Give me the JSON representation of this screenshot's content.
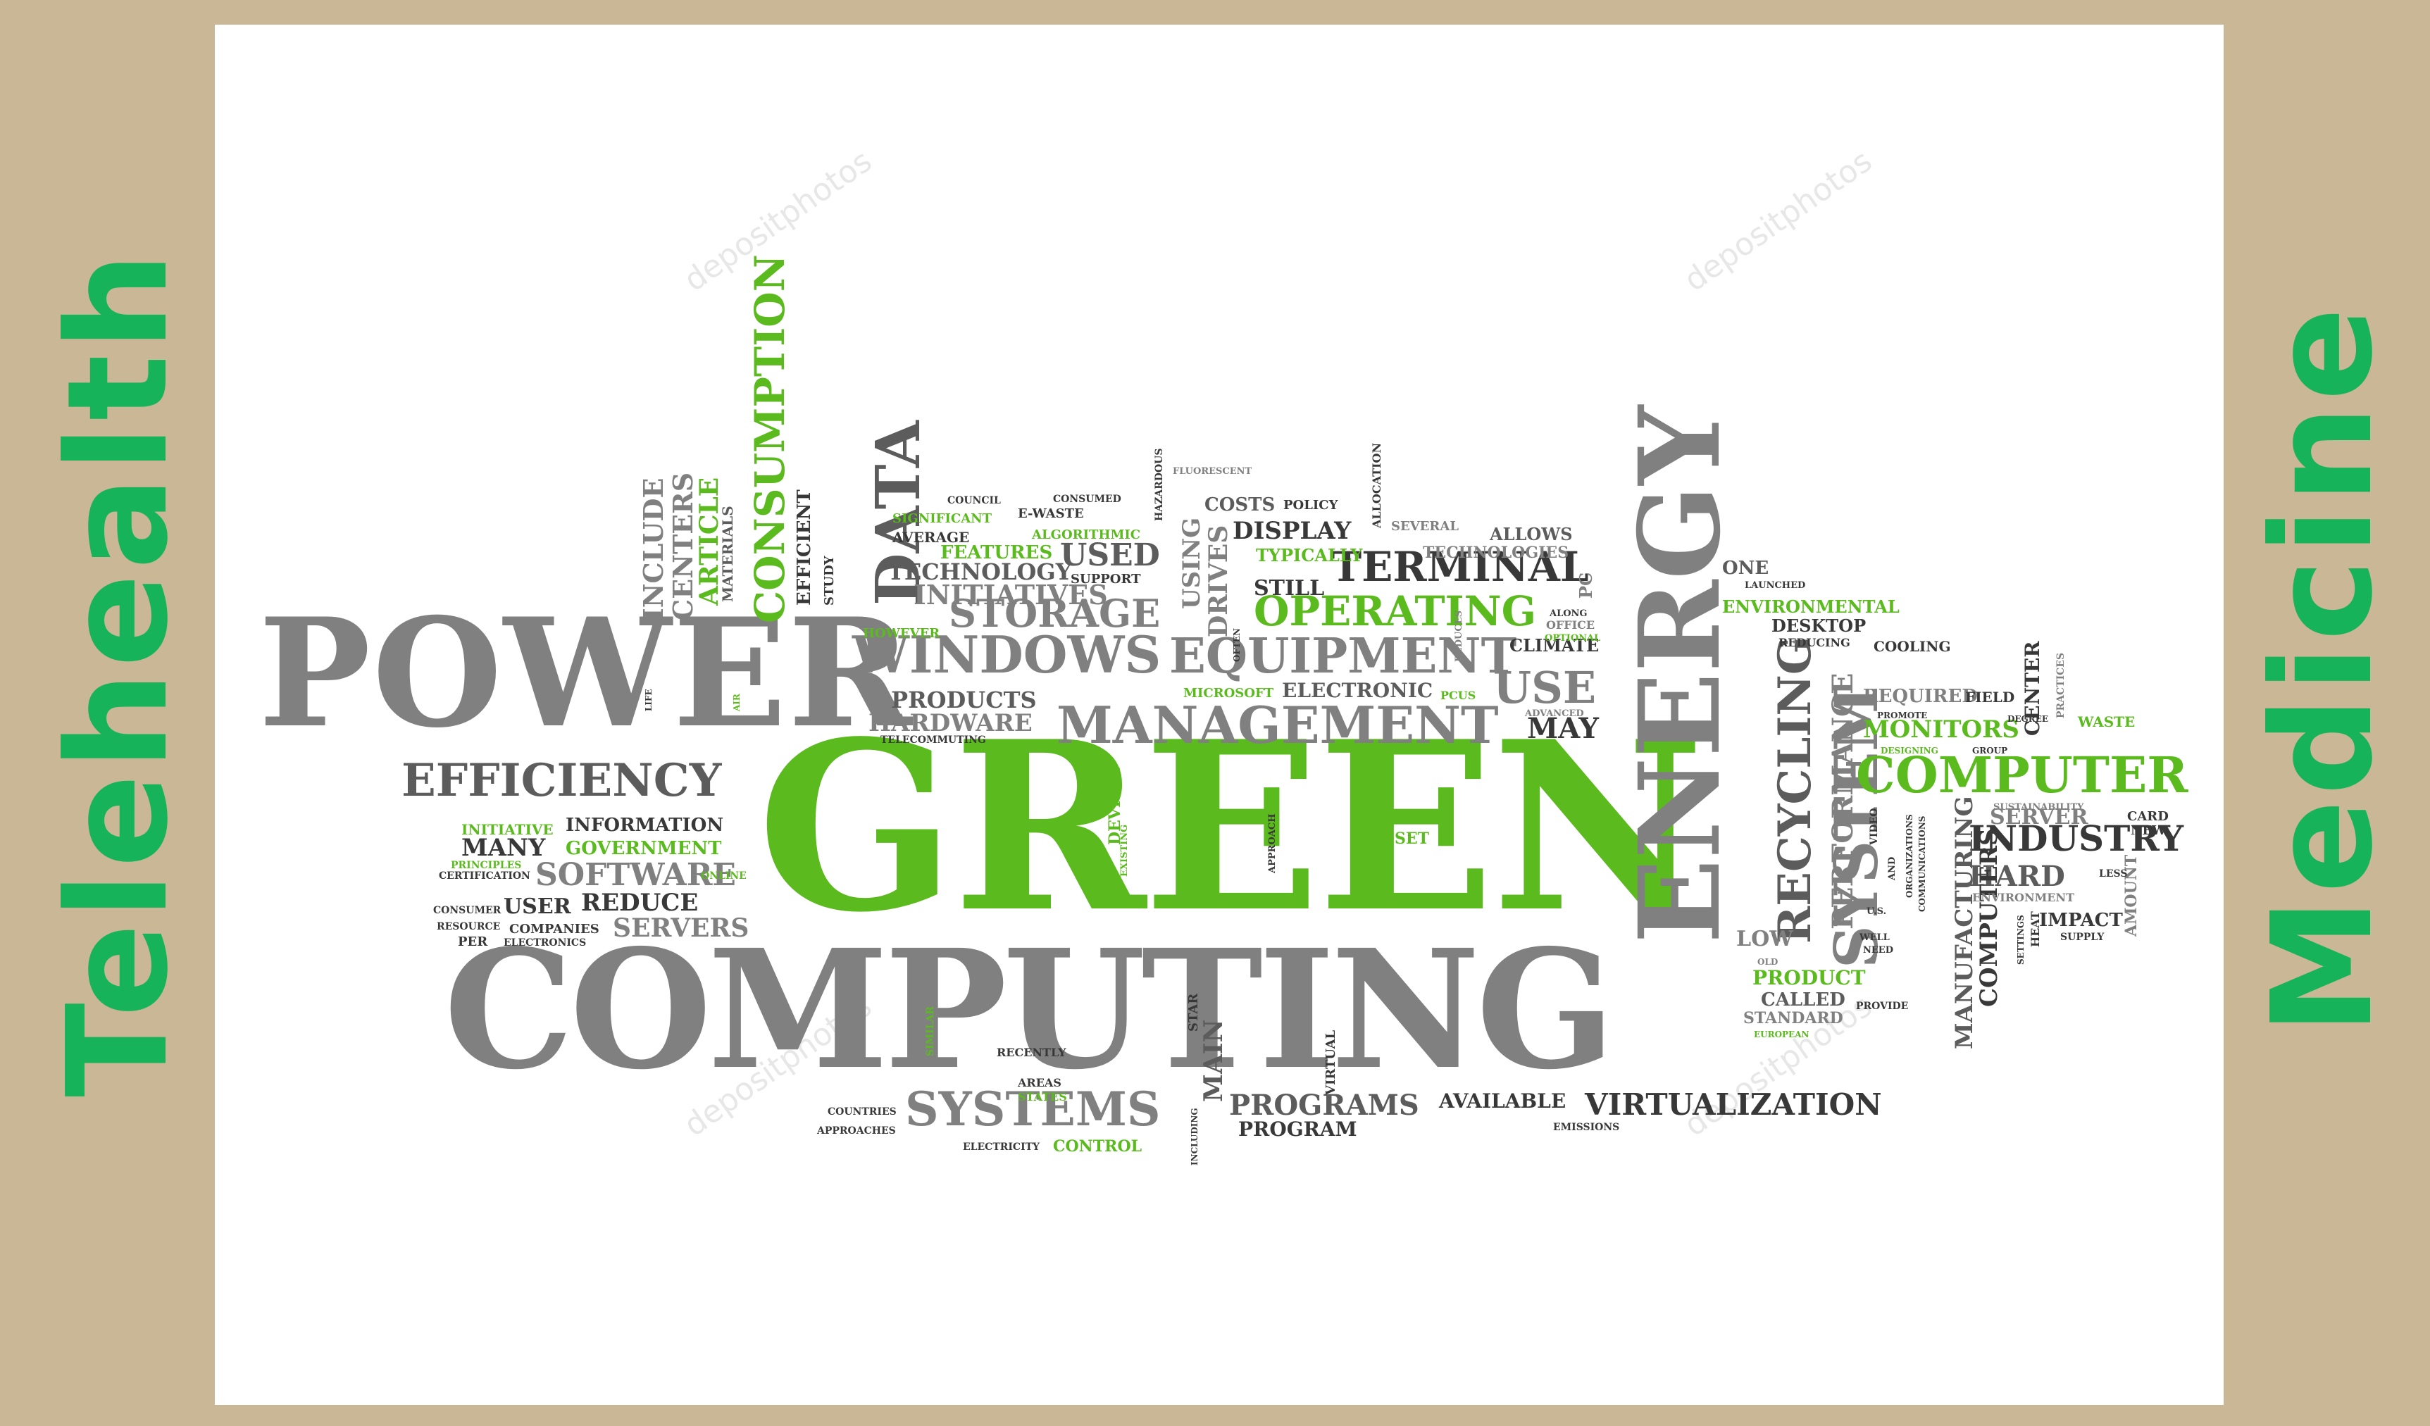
{
  "side_labels": {
    "left": "Telehealth",
    "right": "Medicine"
  },
  "cloud_words": {
    "power": "POWER",
    "green": "GREEN",
    "computing": "COMPUTING",
    "energy": "ENERGY",
    "management": "MANAGEMENT",
    "efficiency": "EFFICIENCY",
    "windows": "WINDOWS",
    "equipment": "EQUIPMENT",
    "operating": "OPERATING",
    "terminal": "TERMINAL",
    "storage": "STORAGE",
    "data": "DATA",
    "consumption": "CONSUMPTION",
    "system": "SYSTEM",
    "recycling": "RECYCLING",
    "performance": "PERFORMANCE",
    "computer": "COMPUTER",
    "industry": "INDUSTRY",
    "systems": "SYSTEMS",
    "virtualization": "VIRTUALIZATION",
    "programs": "PROGRAMS",
    "program": "PROGRAM",
    "available": "AVAILABLE",
    "software": "SOFTWARE",
    "servers": "SERVERS",
    "information": "INFORMATION",
    "many": "MANY",
    "government": "GOVERNMENT",
    "user": "USER",
    "reduce": "REDUCE",
    "companies": "COMPANIES",
    "initiative": "INITIATIVE",
    "initiatives": "INITIATIVES",
    "technology": "TECHNOLOGY",
    "used": "USED",
    "features": "FEATURES",
    "products": "PRODUCTS",
    "hardware": "HARDWARE",
    "display": "DISPLAY",
    "still": "STILL",
    "typically": "TYPICALLY",
    "use": "USE",
    "may": "MAY",
    "electronic": "ELECTRONIC",
    "climate": "CLIMATE",
    "allows": "ALLOWS",
    "technologies": "TECHNOLOGIES",
    "monitors": "MONITORS",
    "required": "REQUIRED",
    "environmental": "ENVIRONMENTAL",
    "desktop": "DESKTOP",
    "cooling": "COOLING",
    "hard": "HARD",
    "server": "SERVER",
    "impact": "IMPACT",
    "manufacturing": "MANUFACTURING",
    "computers": "COMPUTERS",
    "product": "PRODUCT",
    "called": "CALLED",
    "standard": "STANDARD",
    "low": "LOW",
    "main": "MAIN",
    "control": "CONTROL",
    "include": "INCLUDE",
    "centers": "CENTERS",
    "article": "ARTICLE",
    "efficient": "EFFICIENT",
    "costs": "COSTS",
    "drives": "DRIVES",
    "using": "USING",
    "waste": "WASTE",
    "center": "CENTER",
    "one": "ONE",
    "amount": "AMOUNT",
    "devices": "DEVICES",
    "set": "SET",
    "significant": "SIGNIFICANT",
    "average": "AVERAGE",
    "support": "SUPPORT",
    "ewaste": "E-WASTE",
    "algorithmic": "ALGORITHMIC",
    "however": "HOWEVER",
    "microsoft": "MICROSOFT",
    "field": "FIELD",
    "certification": "CERTIFICATION",
    "consumer": "CONSUMER",
    "resource": "RESOURCE",
    "per": "PER",
    "electronics": "ELECTRONICS",
    "principles": "PRINCIPLES",
    "online": "ONLINE",
    "telecommuting": "TELECOMMUTING",
    "recently": "RECENTLY",
    "areas": "AREAS",
    "states": "STATES",
    "countries": "COUNTRIES",
    "approaches": "APPROACHES",
    "electricity": "ELECTRICITY",
    "emissions": "EMISSIONS",
    "provide": "PROVIDE",
    "card": "CARD",
    "new": "NEW",
    "environment": "ENVIRONMENT",
    "supply": "SUPPLY",
    "policy": "POLICY",
    "council": "COUNCIL",
    "consumed": "CONSUMED",
    "allocation": "ALLOCATION",
    "hazardous": "HAZARDOUS",
    "fluorescent": "FLUORESCENT",
    "pc": "PC",
    "several": "SEVERAL",
    "launched": "LAUNCHED",
    "reducing": "REDUCING",
    "practices": "PRACTICES",
    "sustainability": "SUSTAINABILITY",
    "life": "LIFE",
    "materials": "MATERIALS",
    "study": "STUDY",
    "along": "ALONG",
    "office": "OFFICE",
    "optional": "OPTIONAL",
    "pcus": "PCUS",
    "advanced": "ADVANCED",
    "reduces": "REDUCES",
    "often": "OFTEN",
    "ram": "RAM",
    "approach": "APPROACH",
    "existing": "EXISTING",
    "star": "STAR",
    "similar": "SIMILAR",
    "virtual": "VIRTUAL",
    "including": "INCLUDING",
    "video": "VIDEO",
    "and": "AND",
    "organizations": "ORGANIZATIONS",
    "communications": "COMMUNICATIONS",
    "well": "WELL",
    "need": "NEED",
    "us": "U.S.",
    "settings": "SETTINGS",
    "heat": "HEAT",
    "less": "LESS",
    "degree": "DEGREE",
    "promote": "PROMOTE",
    "designing": "DESIGNING",
    "group": "GROUP",
    "old": "OLD",
    "european": "EUROPEAN",
    "air": "AIR"
  },
  "watermark": "depositphotos"
}
